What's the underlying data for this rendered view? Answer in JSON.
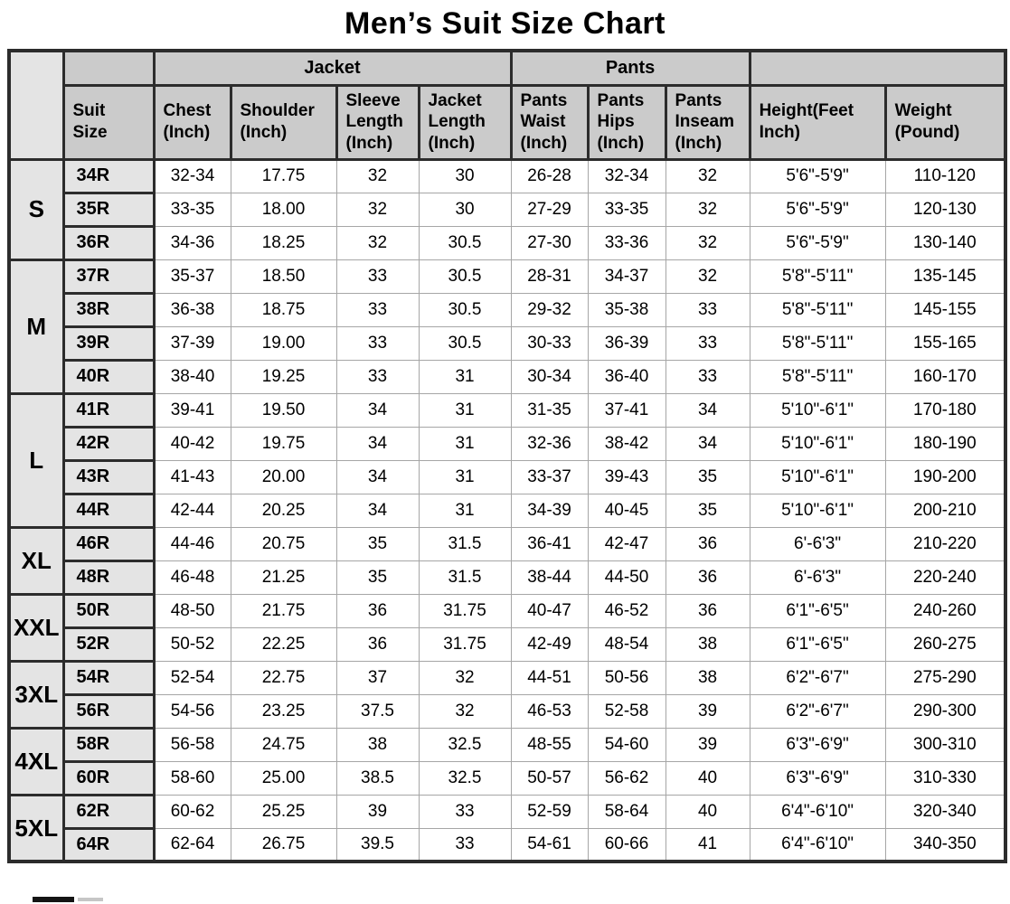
{
  "title": "Men’s Suit Size Chart",
  "colors": {
    "header_background": "#cbcbcb",
    "size_cell_background": "#e4e4e4",
    "data_cell_background": "#ffffff",
    "dark_border": "#2c2c2c",
    "thin_grid": "#a6a6a6",
    "text": "#000000"
  },
  "chart_data": {
    "type": "table",
    "title": "Men’s Suit Size Chart",
    "group_headers": {
      "jacket": "Jacket",
      "pants": "Pants"
    },
    "columns": [
      "Suit\nSize",
      "Chest\n(Inch)",
      "Shoulder\n(Inch)",
      "Sleeve\nLength\n(Inch)",
      "Jacket\nLength\n(Inch)",
      "Pants\nWaist\n(Inch)",
      "Pants\nHips\n(Inch)",
      "Pants\nInseam\n(Inch)",
      "Height(Feet\nInch)",
      "Weight\n(Pound)"
    ],
    "size_groups": [
      {
        "label": "S",
        "rows": [
          {
            "suit_size": "34R",
            "values": [
              "32-34",
              "17.75",
              "32",
              "30",
              "26-28",
              "32-34",
              "32",
              "5'6\"-5'9\"",
              "110-120"
            ]
          },
          {
            "suit_size": "35R",
            "values": [
              "33-35",
              "18.00",
              "32",
              "30",
              "27-29",
              "33-35",
              "32",
              "5'6\"-5'9\"",
              "120-130"
            ]
          },
          {
            "suit_size": "36R",
            "values": [
              "34-36",
              "18.25",
              "32",
              "30.5",
              "27-30",
              "33-36",
              "32",
              "5'6\"-5'9\"",
              "130-140"
            ]
          }
        ]
      },
      {
        "label": "M",
        "rows": [
          {
            "suit_size": "37R",
            "values": [
              "35-37",
              "18.50",
              "33",
              "30.5",
              "28-31",
              "34-37",
              "32",
              "5'8\"-5'11\"",
              "135-145"
            ]
          },
          {
            "suit_size": "38R",
            "values": [
              "36-38",
              "18.75",
              "33",
              "30.5",
              "29-32",
              "35-38",
              "33",
              "5'8\"-5'11\"",
              "145-155"
            ]
          },
          {
            "suit_size": "39R",
            "values": [
              "37-39",
              "19.00",
              "33",
              "30.5",
              "30-33",
              "36-39",
              "33",
              "5'8\"-5'11\"",
              "155-165"
            ]
          },
          {
            "suit_size": "40R",
            "values": [
              "38-40",
              "19.25",
              "33",
              "31",
              "30-34",
              "36-40",
              "33",
              "5'8\"-5'11\"",
              "160-170"
            ]
          }
        ]
      },
      {
        "label": "L",
        "rows": [
          {
            "suit_size": "41R",
            "values": [
              "39-41",
              "19.50",
              "34",
              "31",
              "31-35",
              "37-41",
              "34",
              "5'10\"-6'1\"",
              "170-180"
            ]
          },
          {
            "suit_size": "42R",
            "values": [
              "40-42",
              "19.75",
              "34",
              "31",
              "32-36",
              "38-42",
              "34",
              "5'10\"-6'1\"",
              "180-190"
            ]
          },
          {
            "suit_size": "43R",
            "values": [
              "41-43",
              "20.00",
              "34",
              "31",
              "33-37",
              "39-43",
              "35",
              "5'10\"-6'1\"",
              "190-200"
            ]
          },
          {
            "suit_size": "44R",
            "values": [
              "42-44",
              "20.25",
              "34",
              "31",
              "34-39",
              "40-45",
              "35",
              "5'10\"-6'1\"",
              "200-210"
            ]
          }
        ]
      },
      {
        "label": "XL",
        "rows": [
          {
            "suit_size": "46R",
            "values": [
              "44-46",
              "20.75",
              "35",
              "31.5",
              "36-41",
              "42-47",
              "36",
              "6'-6'3\"",
              "210-220"
            ]
          },
          {
            "suit_size": "48R",
            "values": [
              "46-48",
              "21.25",
              "35",
              "31.5",
              "38-44",
              "44-50",
              "36",
              "6'-6'3\"",
              "220-240"
            ]
          }
        ]
      },
      {
        "label": "XXL",
        "rows": [
          {
            "suit_size": "50R",
            "values": [
              "48-50",
              "21.75",
              "36",
              "31.75",
              "40-47",
              "46-52",
              "36",
              "6'1\"-6'5\"",
              "240-260"
            ]
          },
          {
            "suit_size": "52R",
            "values": [
              "50-52",
              "22.25",
              "36",
              "31.75",
              "42-49",
              "48-54",
              "38",
              "6'1\"-6'5\"",
              "260-275"
            ]
          }
        ]
      },
      {
        "label": "3XL",
        "rows": [
          {
            "suit_size": "54R",
            "values": [
              "52-54",
              "22.75",
              "37",
              "32",
              "44-51",
              "50-56",
              "38",
              "6'2\"-6'7\"",
              "275-290"
            ]
          },
          {
            "suit_size": "56R",
            "values": [
              "54-56",
              "23.25",
              "37.5",
              "32",
              "46-53",
              "52-58",
              "39",
              "6'2\"-6'7\"",
              "290-300"
            ]
          }
        ]
      },
      {
        "label": "4XL",
        "rows": [
          {
            "suit_size": "58R",
            "values": [
              "56-58",
              "24.75",
              "38",
              "32.5",
              "48-55",
              "54-60",
              "39",
              "6'3\"-6'9\"",
              "300-310"
            ]
          },
          {
            "suit_size": "60R",
            "values": [
              "58-60",
              "25.00",
              "38.5",
              "32.5",
              "50-57",
              "56-62",
              "40",
              "6'3\"-6'9\"",
              "310-330"
            ]
          }
        ]
      },
      {
        "label": "5XL",
        "rows": [
          {
            "suit_size": "62R",
            "values": [
              "60-62",
              "25.25",
              "39",
              "33",
              "52-59",
              "58-64",
              "40",
              "6'4\"-6'10\"",
              "320-340"
            ]
          },
          {
            "suit_size": "64R",
            "values": [
              "62-64",
              "26.75",
              "39.5",
              "33",
              "54-61",
              "60-66",
              "41",
              "6'4\"-6'10\"",
              "340-350"
            ]
          }
        ]
      }
    ]
  }
}
